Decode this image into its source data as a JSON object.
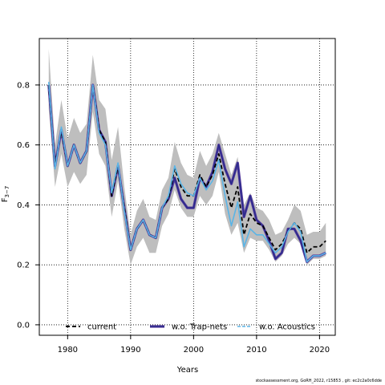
{
  "chart_data": {
    "type": "line",
    "xlabel": "Years",
    "ylabel_main": "F",
    "ylabel_sub": "3−7",
    "xlim": [
      1975.5,
      2022.5
    ],
    "ylim": [
      -0.035,
      0.955
    ],
    "x_ticks": [
      1980,
      1990,
      2000,
      2010,
      2020
    ],
    "y_ticks": [
      0.0,
      0.2,
      0.4,
      0.6,
      0.8
    ],
    "y_tick_labels": [
      "0.0",
      "0.2",
      "0.4",
      "0.6",
      "0.8"
    ],
    "grid": true,
    "legend_position": "bottom",
    "colors": {
      "band": "#bebebe",
      "current": "#000000",
      "trap": "#2b2b8c",
      "trap_edge": "#5a3c9e",
      "acoustic": "#5ab4e6"
    },
    "x": [
      1977,
      1978,
      1979,
      1980,
      1981,
      1982,
      1983,
      1984,
      1985,
      1986,
      1987,
      1988,
      1989,
      1990,
      1991,
      1992,
      1993,
      1994,
      1995,
      1996,
      1997,
      1998,
      1999,
      2000,
      2001,
      2002,
      2003,
      2004,
      2005,
      2006,
      2007,
      2008,
      2009,
      2010,
      2011,
      2012,
      2013,
      2014,
      2015,
      2016,
      2017,
      2018,
      2019,
      2020,
      2021
    ],
    "band_upper": [
      0.92,
      0.6,
      0.75,
      0.62,
      0.69,
      0.64,
      0.67,
      0.9,
      0.75,
      0.72,
      0.55,
      0.66,
      0.46,
      0.3,
      0.38,
      0.42,
      0.36,
      0.35,
      0.45,
      0.49,
      0.61,
      0.54,
      0.5,
      0.49,
      0.58,
      0.53,
      0.57,
      0.64,
      0.57,
      0.5,
      0.56,
      0.4,
      0.44,
      0.39,
      0.38,
      0.35,
      0.3,
      0.31,
      0.35,
      0.4,
      0.38,
      0.3,
      0.31,
      0.31,
      0.34
    ],
    "band_lower": [
      0.72,
      0.46,
      0.57,
      0.46,
      0.51,
      0.47,
      0.5,
      0.71,
      0.57,
      0.53,
      0.36,
      0.48,
      0.32,
      0.2,
      0.26,
      0.29,
      0.24,
      0.24,
      0.33,
      0.37,
      0.45,
      0.39,
      0.36,
      0.36,
      0.43,
      0.4,
      0.43,
      0.51,
      0.37,
      0.3,
      0.34,
      0.24,
      0.29,
      0.28,
      0.28,
      0.25,
      0.21,
      0.23,
      0.27,
      0.29,
      0.27,
      0.2,
      0.22,
      0.22,
      0.23
    ],
    "series": [
      {
        "name": "current",
        "values": [
          0.8,
          0.53,
          0.65,
          0.53,
          0.6,
          0.54,
          0.58,
          0.8,
          0.65,
          0.61,
          0.43,
          0.53,
          0.39,
          0.25,
          0.32,
          0.35,
          0.3,
          0.29,
          0.39,
          0.42,
          0.52,
          0.46,
          0.43,
          0.43,
          0.5,
          0.46,
          0.5,
          0.57,
          0.47,
          0.39,
          0.46,
          0.3,
          0.37,
          0.34,
          0.33,
          0.29,
          0.25,
          0.27,
          0.31,
          0.34,
          0.32,
          0.24,
          0.26,
          0.26,
          0.28
        ]
      },
      {
        "name": "w.o. Trap-nets",
        "values": [
          0.8,
          0.53,
          0.65,
          0.53,
          0.6,
          0.54,
          0.58,
          0.8,
          0.65,
          0.61,
          0.43,
          0.53,
          0.39,
          0.25,
          0.32,
          0.35,
          0.3,
          0.29,
          0.39,
          0.42,
          0.49,
          0.42,
          0.39,
          0.39,
          0.49,
          0.46,
          0.51,
          0.6,
          0.52,
          0.47,
          0.54,
          0.36,
          0.43,
          0.35,
          0.33,
          0.28,
          0.22,
          0.24,
          0.32,
          0.32,
          0.28,
          0.21,
          0.23,
          0.23,
          0.24
        ]
      },
      {
        "name": "w.o. Acoustics",
        "values": [
          0.81,
          0.52,
          0.66,
          0.53,
          0.6,
          0.54,
          0.58,
          0.8,
          0.64,
          0.6,
          0.44,
          0.54,
          0.38,
          0.25,
          0.32,
          0.35,
          0.3,
          0.29,
          0.39,
          0.43,
          0.53,
          0.47,
          0.44,
          0.43,
          0.49,
          0.45,
          0.48,
          0.55,
          0.43,
          0.33,
          0.41,
          0.26,
          0.32,
          0.3,
          0.3,
          0.27,
          0.24,
          0.26,
          0.31,
          0.34,
          0.31,
          0.21,
          0.23,
          0.23,
          0.24
        ]
      }
    ]
  },
  "footer": "stockassessment.org, GoRH_2022, r15853 , git: ec2c2a0c6dde"
}
